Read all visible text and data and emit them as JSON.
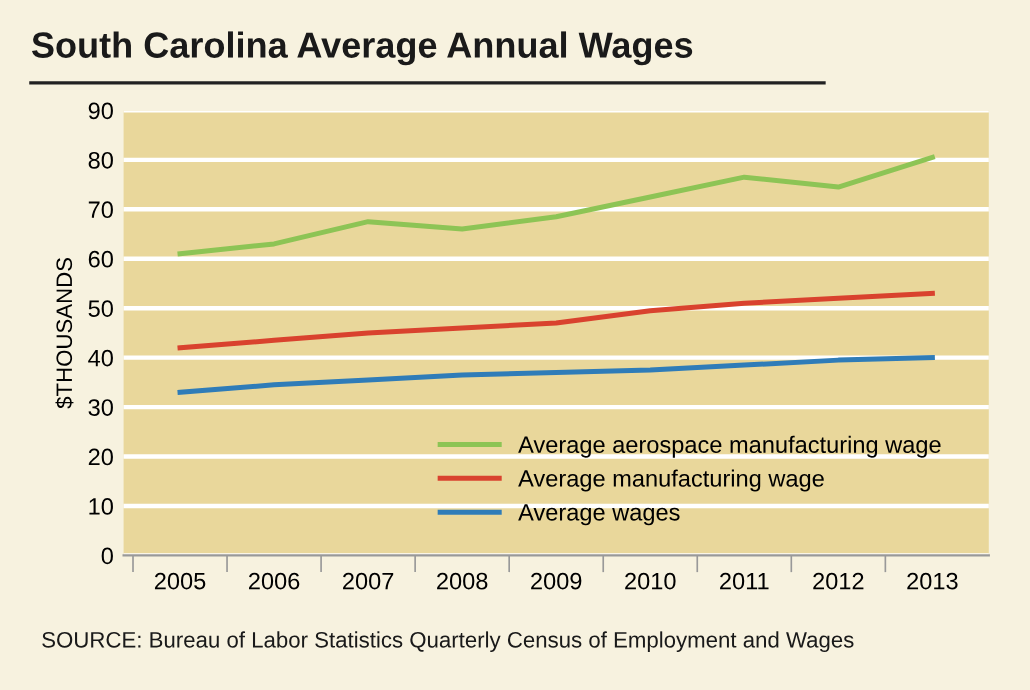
{
  "chart_data": {
    "type": "line",
    "title": "South Carolina Average Annual Wages",
    "ylabel": "$THOUSANDS",
    "categories": [
      "2005",
      "2006",
      "2007",
      "2008",
      "2009",
      "2010",
      "2011",
      "2012",
      "2013"
    ],
    "series": [
      {
        "name": "Average aerospace manufacturing wage",
        "color": "#8dc455",
        "values": [
          61,
          63,
          67.5,
          66,
          68.5,
          72.5,
          76.5,
          74.5,
          80.5
        ]
      },
      {
        "name": "Average manufacturing wage",
        "color": "#d9422e",
        "values": [
          42,
          43.5,
          45,
          46,
          47,
          49.5,
          51,
          52,
          53
        ]
      },
      {
        "name": "Average wages",
        "color": "#2f7cb8",
        "values": [
          33,
          34.5,
          35.5,
          36.5,
          37,
          37.5,
          38.5,
          39.5,
          40
        ]
      }
    ],
    "ylim": [
      0,
      90
    ],
    "yticks": [
      0,
      10,
      20,
      30,
      40,
      50,
      60,
      70,
      80,
      90
    ],
    "grid": "y",
    "legend": "bottom right",
    "marker": "none",
    "line_style": "solid",
    "annotations": [
      "SOURCE: Bureau of Labor Statistics Quarterly Census of Employment and Wages"
    ]
  }
}
